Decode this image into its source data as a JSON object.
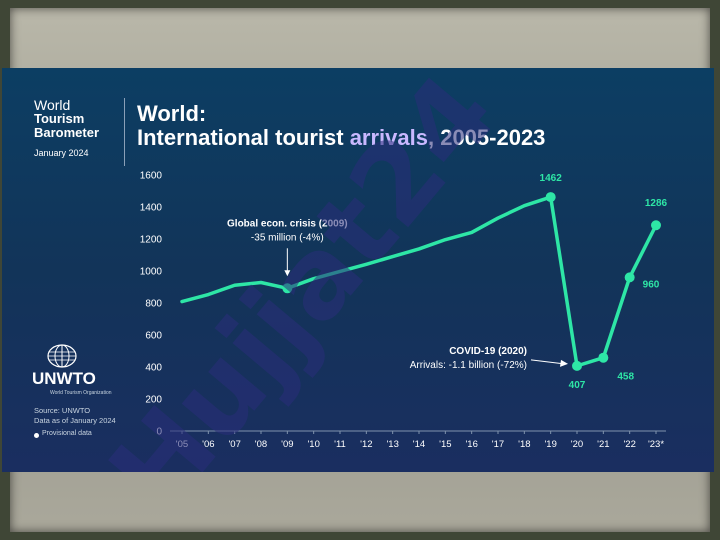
{
  "header": {
    "brand_line1": "World",
    "brand_line2": "Tourism",
    "brand_line3": "Barometer",
    "brand_date": "January 2024",
    "title_line1": "World:",
    "title_line2": "International tourist arrivals, 2005-2023"
  },
  "footer": {
    "logo_name": "UNWTO",
    "logo_sub": "World Tourism Organization",
    "source": "Source: UNWTO",
    "data_as_of": "Data as of January 2024",
    "legend_provisional": "Provisional data"
  },
  "watermark": "Hujjat24",
  "colors": {
    "line": "#2ee6a6",
    "accent": "#c9b8ff",
    "background_top": "#0c3e63",
    "background_bottom": "#1a2e60",
    "watermark": "#2a2e7a"
  },
  "chart_data": {
    "type": "line",
    "title": "World: International tourist arrivals, 2005-2023",
    "xlabel": "",
    "ylabel": "",
    "ylim": [
      0,
      1600
    ],
    "yticks": [
      0,
      200,
      400,
      600,
      800,
      1000,
      1200,
      1400,
      1600
    ],
    "categories": [
      "'05",
      "'06",
      "'07",
      "'08",
      "'09",
      "'10",
      "'11",
      "'12",
      "'13",
      "'14",
      "'15",
      "'16",
      "'17",
      "'18",
      "'19",
      "'20",
      "'21",
      "'22",
      "'23*"
    ],
    "values": [
      809,
      853,
      911,
      928,
      892,
      952,
      997,
      1042,
      1090,
      1138,
      1196,
      1241,
      1331,
      1408,
      1462,
      407,
      458,
      960,
      1286
    ],
    "markers": [
      4,
      14,
      15,
      16,
      17,
      18
    ],
    "data_labels": [
      {
        "index": 14,
        "text": "1462",
        "pos": "above"
      },
      {
        "index": 15,
        "text": "407",
        "pos": "below"
      },
      {
        "index": 16,
        "text": "458",
        "pos": "below-right"
      },
      {
        "index": 17,
        "text": "960",
        "pos": "right"
      },
      {
        "index": 18,
        "text": "1286",
        "pos": "above-left"
      }
    ],
    "annotations": [
      {
        "index": 4,
        "title": "Global econ. crisis (2009)",
        "text": "-35 million (-4%)",
        "pos": "above"
      },
      {
        "index": 15,
        "title": "COVID-19 (2020)",
        "text": "Arrivals: -1.1 billion (-72%)",
        "pos": "left"
      }
    ],
    "grid": false,
    "legend": "none"
  }
}
